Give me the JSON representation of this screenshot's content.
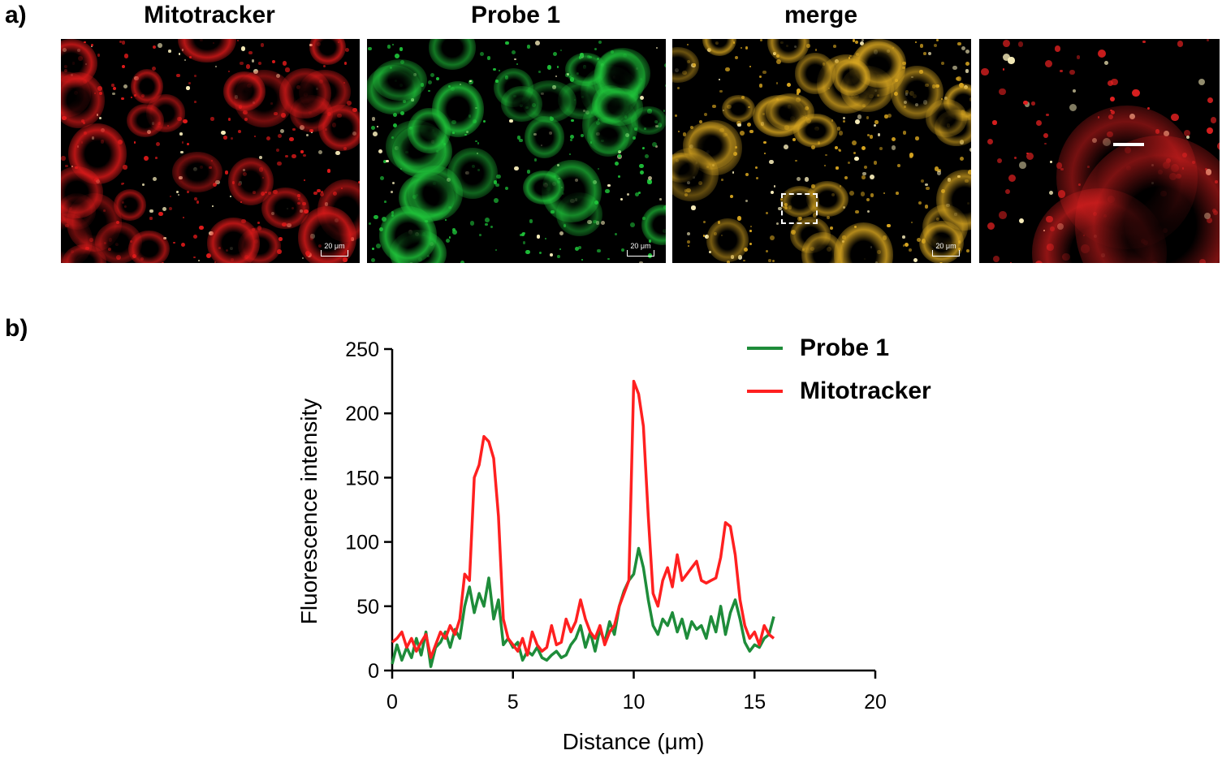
{
  "panels": {
    "a": "a)",
    "b": "b)"
  },
  "images": [
    {
      "title": "Mitotracker",
      "scalebar": "20 μm",
      "tint": "#e01a1a"
    },
    {
      "title": "Probe 1",
      "scalebar": "20 μm",
      "tint": "#1fc43a"
    },
    {
      "title": "merge",
      "scalebar": "20 μm",
      "tint": "#d7a520"
    },
    {
      "title": "",
      "scalebar": "",
      "tint": "#e02020"
    }
  ],
  "chart_data": {
    "type": "line",
    "xlabel": "Distance (μm)",
    "ylabel": "Fluorescence intensity",
    "xlim": [
      0,
      20
    ],
    "ylim": [
      0,
      250
    ],
    "xticks": [
      0,
      5,
      10,
      15,
      20
    ],
    "yticks": [
      0,
      50,
      100,
      150,
      200,
      250
    ],
    "legend_position": "top-right",
    "series": [
      {
        "name": "Probe 1",
        "color": "#1e8c3a",
        "x": [
          0,
          0.2,
          0.4,
          0.6,
          0.8,
          1.0,
          1.2,
          1.4,
          1.6,
          1.8,
          2.0,
          2.2,
          2.4,
          2.6,
          2.8,
          3.0,
          3.2,
          3.4,
          3.6,
          3.8,
          4.0,
          4.2,
          4.4,
          4.6,
          4.8,
          5.0,
          5.2,
          5.4,
          5.6,
          5.8,
          6.0,
          6.2,
          6.4,
          6.6,
          6.8,
          7.0,
          7.2,
          7.4,
          7.6,
          7.8,
          8.0,
          8.2,
          8.4,
          8.6,
          8.8,
          9.0,
          9.2,
          9.4,
          9.6,
          9.8,
          10.0,
          10.2,
          10.4,
          10.6,
          10.8,
          11.0,
          11.2,
          11.4,
          11.6,
          11.8,
          12.0,
          12.2,
          12.4,
          12.6,
          12.8,
          13.0,
          13.2,
          13.4,
          13.6,
          13.8,
          14.0,
          14.2,
          14.4,
          14.6,
          14.8,
          15.0,
          15.2,
          15.4,
          15.6,
          15.8
        ],
        "values": [
          5,
          20,
          8,
          18,
          10,
          25,
          12,
          30,
          3,
          18,
          22,
          30,
          18,
          32,
          25,
          50,
          65,
          45,
          60,
          50,
          72,
          40,
          55,
          20,
          25,
          18,
          22,
          8,
          15,
          12,
          18,
          10,
          8,
          12,
          15,
          10,
          12,
          20,
          25,
          35,
          18,
          30,
          15,
          32,
          22,
          38,
          28,
          50,
          62,
          70,
          75,
          95,
          80,
          55,
          35,
          28,
          40,
          35,
          45,
          30,
          40,
          25,
          38,
          32,
          35,
          25,
          42,
          30,
          50,
          28,
          45,
          55,
          40,
          22,
          15,
          20,
          18,
          25,
          28,
          42
        ]
      },
      {
        "name": "Mitotracker",
        "color": "#ff2020",
        "x": [
          0,
          0.2,
          0.4,
          0.6,
          0.8,
          1.0,
          1.2,
          1.4,
          1.6,
          1.8,
          2.0,
          2.2,
          2.4,
          2.6,
          2.8,
          3.0,
          3.2,
          3.4,
          3.6,
          3.8,
          4.0,
          4.2,
          4.4,
          4.6,
          4.8,
          5.0,
          5.2,
          5.4,
          5.6,
          5.8,
          6.0,
          6.2,
          6.4,
          6.6,
          6.8,
          7.0,
          7.2,
          7.4,
          7.6,
          7.8,
          8.0,
          8.2,
          8.4,
          8.6,
          8.8,
          9.0,
          9.2,
          9.4,
          9.6,
          9.8,
          10.0,
          10.2,
          10.4,
          10.6,
          10.8,
          11.0,
          11.2,
          11.4,
          11.6,
          11.8,
          12.0,
          12.2,
          12.4,
          12.6,
          12.8,
          13.0,
          13.2,
          13.4,
          13.6,
          13.8,
          14.0,
          14.2,
          14.4,
          14.6,
          14.8,
          15.0,
          15.2,
          15.4,
          15.6,
          15.8
        ],
        "values": [
          22,
          25,
          30,
          18,
          25,
          15,
          22,
          28,
          10,
          20,
          30,
          25,
          35,
          28,
          40,
          75,
          70,
          150,
          160,
          182,
          178,
          165,
          120,
          40,
          25,
          20,
          15,
          25,
          12,
          30,
          20,
          15,
          18,
          35,
          20,
          22,
          40,
          30,
          38,
          55,
          40,
          30,
          25,
          35,
          20,
          30,
          35,
          50,
          60,
          70,
          225,
          215,
          190,
          120,
          60,
          50,
          70,
          80,
          65,
          90,
          70,
          75,
          80,
          85,
          70,
          68,
          70,
          72,
          88,
          115,
          112,
          90,
          55,
          35,
          25,
          30,
          20,
          35,
          28,
          25
        ]
      }
    ]
  }
}
